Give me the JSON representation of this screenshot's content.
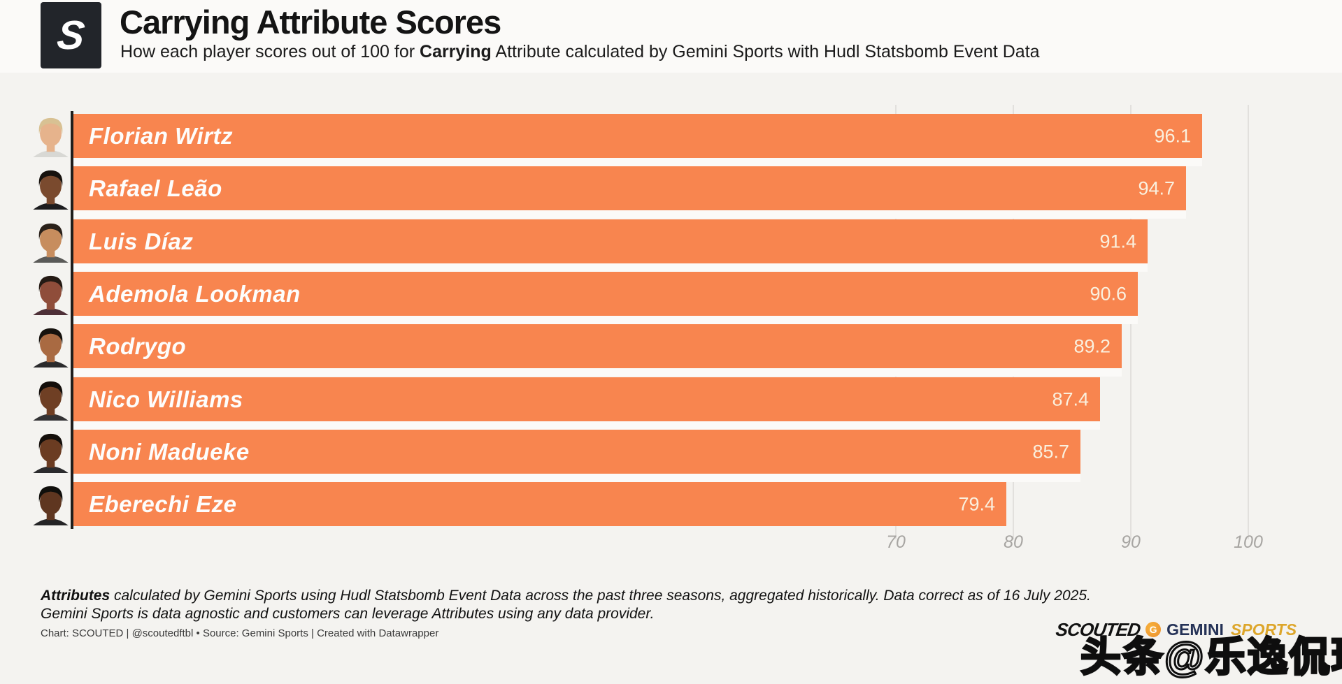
{
  "header": {
    "logo_letter": "S",
    "title": "Carrying Attribute Scores",
    "subtitle_prefix": "How each player scores out of 100 for ",
    "subtitle_bold": "Carrying",
    "subtitle_suffix": " Attribute calculated by Gemini Sports with Hudl Statsbomb Event Data"
  },
  "chart_data": {
    "type": "bar",
    "orientation": "horizontal",
    "title": "Carrying Attribute Scores",
    "categories": [
      "Florian Wirtz",
      "Rafael Leão",
      "Luis Díaz",
      "Ademola Lookman",
      "Rodrygo",
      "Nico Williams",
      "Noni Madueke",
      "Eberechi Eze"
    ],
    "values": [
      96.1,
      94.7,
      91.4,
      90.6,
      89.2,
      87.4,
      85.7,
      79.4
    ],
    "xlim": [
      0,
      100
    ],
    "x_ticks": [
      70,
      80,
      90,
      100
    ],
    "grid": true,
    "legend": "none",
    "bar_color": "#F8854F",
    "name_label_color": "#FDFDFC",
    "value_label_color": "#FAF0DE",
    "tick_label_color": "#A7A5A2",
    "players": [
      {
        "name": "Florian Wirtz",
        "value": "96.1",
        "avatar": {
          "skin": "#e6b38c",
          "hair": "#d8c193",
          "shirt": "#d8d8d4"
        }
      },
      {
        "name": "Rafael Leão",
        "value": "94.7",
        "avatar": {
          "skin": "#7a4a2e",
          "hair": "#17120e",
          "shirt": "#1d1d1f"
        }
      },
      {
        "name": "Luis Díaz",
        "value": "91.4",
        "avatar": {
          "skin": "#c78d5e",
          "hair": "#2a211a",
          "shirt": "#5a5a58"
        }
      },
      {
        "name": "Ademola Lookman",
        "value": "90.6",
        "avatar": {
          "skin": "#8f4d3a",
          "hair": "#241a14",
          "shirt": "#4e3038"
        }
      },
      {
        "name": "Rodrygo",
        "value": "89.2",
        "avatar": {
          "skin": "#a96a42",
          "hair": "#16120e",
          "shirt": "#2a2a2c"
        }
      },
      {
        "name": "Nico Williams",
        "value": "87.4",
        "avatar": {
          "skin": "#6f3f24",
          "hair": "#120d0a",
          "shirt": "#333335"
        }
      },
      {
        "name": "Noni Madueke",
        "value": "85.7",
        "avatar": {
          "skin": "#6b3c22",
          "hair": "#140f0b",
          "shirt": "#2b2b2d"
        }
      },
      {
        "name": "Eberechi Eze",
        "value": "79.4",
        "avatar": {
          "skin": "#5f3620",
          "hair": "#100f0c",
          "shirt": "#242426"
        }
      }
    ]
  },
  "footer": {
    "note_bold": "Attributes",
    "note_line1_rest": " calculated by Gemini Sports using Hudl Statsbomb Event Data across the past three seasons, aggregated historically. Data correct as of 16 July 2025.",
    "note_line2": "Gemini Sports is data agnostic and customers can leverage Attributes using any data provider.",
    "credit": "Chart: SCOUTED | @scoutedftbl • Source: Gemini Sports | Created with Datawrapper",
    "logos": {
      "scouted_wordmark": "SCOUTED",
      "gemini_g_letter": "G",
      "gemini_word": "GEMINI",
      "sports_word": "SPORTS",
      "gemini_navy": "#253257",
      "sports_gold": "#DDA62B"
    },
    "watermark": "头条@乐逸侃球"
  }
}
